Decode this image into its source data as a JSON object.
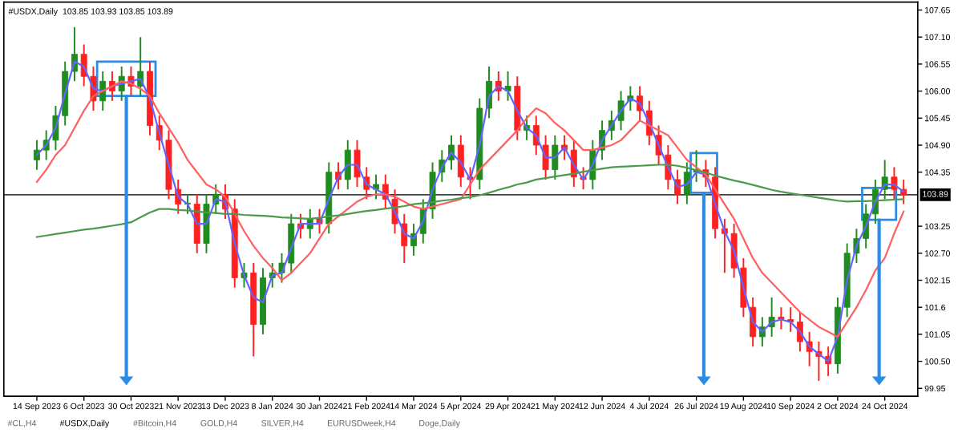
{
  "chart_data": {
    "type": "candlestick",
    "title": "#USDX,Daily  103.85 103.93 103.85 103.89",
    "categories": [
      "14 Sep 2023",
      null,
      null,
      null,
      null,
      "6 Oct 2023",
      null,
      null,
      null,
      null,
      "30 Oct 2023",
      null,
      null,
      null,
      null,
      "21 Nov 2023",
      null,
      null,
      null,
      null,
      "13 Dec 2023",
      null,
      null,
      null,
      null,
      "8 Jan 2024",
      null,
      null,
      null,
      null,
      "30 Jan 2024",
      null,
      null,
      null,
      null,
      "21 Feb 2024",
      null,
      null,
      null,
      null,
      "14 Mar 2024",
      null,
      null,
      null,
      null,
      "5 Apr 2024",
      null,
      null,
      null,
      null,
      "29 Apr 2024",
      null,
      null,
      null,
      null,
      "21 May 2024",
      null,
      null,
      null,
      null,
      "12 Jun 2024",
      null,
      null,
      null,
      null,
      "4 Jul 2024",
      null,
      null,
      null,
      null,
      "26 Jul 2024",
      null,
      null,
      null,
      null,
      "19 Aug 2024",
      null,
      null,
      null,
      null,
      "10 Sep 2024",
      null,
      null,
      null,
      null,
      "2 Oct 2024",
      null,
      null,
      null,
      null,
      "24 Oct 2024",
      null,
      null
    ],
    "ohlc": [
      [
        104.6,
        105.0,
        104.4,
        104.8
      ],
      [
        104.8,
        105.2,
        104.6,
        105.0
      ],
      [
        105.0,
        105.7,
        104.8,
        105.5
      ],
      [
        105.5,
        106.6,
        105.3,
        106.4
      ],
      [
        106.4,
        107.3,
        106.2,
        106.75
      ],
      [
        106.75,
        106.95,
        106.1,
        106.3
      ],
      [
        106.3,
        106.5,
        105.6,
        105.8
      ],
      [
        105.8,
        106.4,
        105.6,
        106.2
      ],
      [
        106.2,
        106.4,
        105.8,
        106.0
      ],
      [
        106.0,
        106.5,
        105.8,
        106.3
      ],
      [
        106.3,
        106.5,
        105.9,
        106.1
      ],
      [
        106.1,
        107.1,
        105.9,
        106.4
      ],
      [
        106.4,
        106.6,
        105.1,
        105.3
      ],
      [
        105.3,
        105.5,
        104.8,
        105.0
      ],
      [
        105.0,
        105.2,
        103.8,
        104.0
      ],
      [
        104.0,
        104.2,
        103.5,
        103.7
      ],
      [
        103.7,
        103.9,
        103.5,
        103.7
      ],
      [
        103.7,
        103.9,
        102.7,
        102.9
      ],
      [
        102.9,
        103.9,
        102.7,
        103.7
      ],
      [
        103.7,
        104.1,
        103.5,
        103.9
      ],
      [
        103.9,
        104.1,
        103.4,
        103.6
      ],
      [
        103.6,
        103.8,
        102.0,
        102.2
      ],
      [
        102.2,
        102.5,
        102.0,
        102.3
      ],
      [
        102.3,
        102.5,
        100.6,
        101.25
      ],
      [
        101.25,
        102.4,
        101.05,
        102.2
      ],
      [
        102.2,
        102.5,
        102.0,
        102.3
      ],
      [
        102.3,
        102.7,
        102.1,
        102.5
      ],
      [
        102.5,
        103.5,
        102.3,
        103.3
      ],
      [
        103.3,
        103.5,
        103.0,
        103.2
      ],
      [
        103.2,
        103.6,
        103.0,
        103.4
      ],
      [
        103.4,
        103.6,
        103.1,
        103.3
      ],
      [
        103.3,
        104.55,
        103.1,
        104.35
      ],
      [
        104.35,
        104.55,
        104.0,
        104.2
      ],
      [
        104.2,
        105.0,
        104.0,
        104.8
      ],
      [
        104.8,
        105.0,
        104.05,
        104.25
      ],
      [
        104.25,
        104.45,
        103.8,
        104.0
      ],
      [
        104.0,
        104.3,
        103.8,
        104.1
      ],
      [
        104.1,
        104.3,
        103.6,
        103.8
      ],
      [
        103.8,
        104.0,
        103.1,
        103.3
      ],
      [
        103.3,
        103.5,
        102.5,
        102.85
      ],
      [
        102.85,
        103.3,
        102.65,
        103.1
      ],
      [
        103.1,
        103.8,
        102.9,
        103.6
      ],
      [
        103.6,
        104.55,
        103.4,
        104.35
      ],
      [
        104.35,
        104.8,
        104.15,
        104.6
      ],
      [
        104.6,
        105.1,
        104.4,
        104.9
      ],
      [
        104.9,
        105.1,
        104.05,
        104.25
      ],
      [
        104.25,
        104.45,
        103.8,
        104.2
      ],
      [
        104.2,
        105.85,
        104.0,
        105.65
      ],
      [
        105.65,
        106.5,
        105.45,
        106.2
      ],
      [
        106.2,
        106.4,
        105.8,
        106.0
      ],
      [
        106.0,
        106.4,
        105.8,
        106.1
      ],
      [
        106.1,
        106.3,
        105.0,
        105.2
      ],
      [
        105.2,
        105.5,
        105.0,
        105.3
      ],
      [
        105.3,
        105.5,
        104.7,
        104.9
      ],
      [
        104.9,
        105.1,
        104.2,
        104.4
      ],
      [
        104.4,
        105.1,
        104.2,
        104.9
      ],
      [
        104.9,
        105.1,
        104.6,
        104.8
      ],
      [
        104.8,
        105.0,
        104.05,
        104.25
      ],
      [
        104.25,
        104.45,
        104.0,
        104.2
      ],
      [
        104.2,
        105.0,
        104.0,
        104.8
      ],
      [
        104.8,
        105.4,
        104.6,
        105.2
      ],
      [
        105.2,
        105.6,
        105.0,
        105.4
      ],
      [
        105.4,
        106.0,
        105.2,
        105.8
      ],
      [
        105.8,
        106.1,
        105.6,
        105.9
      ],
      [
        105.9,
        106.1,
        105.4,
        105.6
      ],
      [
        105.6,
        105.8,
        104.9,
        105.1
      ],
      [
        105.1,
        105.3,
        104.5,
        104.7
      ],
      [
        104.7,
        104.9,
        104.0,
        104.2
      ],
      [
        104.2,
        104.4,
        103.7,
        103.9
      ],
      [
        103.9,
        104.55,
        103.7,
        104.35
      ],
      [
        104.35,
        104.8,
        104.15,
        104.4
      ],
      [
        104.4,
        104.6,
        104.05,
        104.25
      ],
      [
        104.25,
        104.45,
        103.0,
        103.2
      ],
      [
        103.2,
        103.4,
        102.3,
        103.1
      ],
      [
        103.1,
        103.3,
        102.2,
        102.4
      ],
      [
        102.4,
        102.6,
        101.4,
        101.6
      ],
      [
        101.6,
        101.8,
        100.8,
        101.0
      ],
      [
        101.0,
        101.4,
        100.8,
        101.2
      ],
      [
        101.2,
        101.8,
        101.0,
        101.4
      ],
      [
        101.4,
        101.6,
        101.15,
        101.35
      ],
      [
        101.35,
        101.6,
        101.1,
        101.3
      ],
      [
        101.3,
        101.5,
        100.7,
        100.9
      ],
      [
        100.9,
        101.1,
        100.4,
        100.7
      ],
      [
        100.7,
        100.9,
        100.1,
        100.6
      ],
      [
        100.6,
        100.8,
        100.2,
        100.45
      ],
      [
        100.45,
        101.8,
        100.25,
        101.6
      ],
      [
        101.6,
        102.9,
        101.4,
        102.7
      ],
      [
        102.7,
        103.2,
        102.5,
        103.0
      ],
      [
        103.0,
        103.7,
        102.8,
        103.5
      ],
      [
        103.5,
        104.2,
        103.3,
        104.0
      ],
      [
        104.0,
        104.6,
        103.8,
        104.25
      ],
      [
        104.25,
        104.45,
        103.8,
        104.0
      ],
      [
        104.0,
        104.2,
        103.7,
        103.89
      ]
    ],
    "series": [
      {
        "type": "line",
        "color": "#6464ff",
        "values": [
          104.7,
          104.9,
          105.25,
          105.95,
          106.6,
          106.5,
          106.05,
          106.0,
          106.1,
          106.15,
          106.2,
          106.25,
          105.85,
          105.15,
          104.5,
          103.85,
          103.7,
          103.3,
          103.3,
          103.8,
          103.75,
          102.9,
          102.25,
          101.8,
          101.7,
          102.25,
          102.3,
          102.8,
          103.3,
          103.3,
          103.3,
          103.8,
          104.25,
          104.5,
          104.5,
          104.1,
          104.0,
          103.9,
          103.55,
          103.1,
          103.0,
          103.35,
          104.0,
          104.45,
          104.75,
          104.55,
          104.2,
          104.9,
          105.9,
          106.1,
          106.0,
          105.6,
          105.25,
          105.1,
          104.65,
          104.65,
          104.85,
          104.5,
          104.2,
          104.5,
          105.0,
          105.3,
          105.6,
          105.85,
          105.75,
          105.35,
          104.9,
          104.45,
          104.05,
          104.1,
          104.35,
          104.3,
          103.7,
          103.15,
          102.75,
          102.0,
          101.3,
          101.1,
          101.3,
          101.35,
          101.3,
          101.1,
          100.8,
          100.65,
          100.5,
          101.0,
          102.15,
          102.85,
          103.25,
          103.75,
          104.1,
          104.1,
          103.95
        ]
      },
      {
        "type": "line",
        "color": "#ff6060",
        "values": [
          104.15,
          104.4,
          104.7,
          104.9,
          105.25,
          105.6,
          105.9,
          106.0,
          106.1,
          106.2,
          106.15,
          106.05,
          105.9,
          105.55,
          105.25,
          104.95,
          104.6,
          104.35,
          104.1,
          104.0,
          103.85,
          103.5,
          103.15,
          102.85,
          102.6,
          102.4,
          102.15,
          102.3,
          102.5,
          102.7,
          103.0,
          103.3,
          103.45,
          103.6,
          103.75,
          103.85,
          103.9,
          103.9,
          103.85,
          103.75,
          103.65,
          103.6,
          103.65,
          103.7,
          103.75,
          103.8,
          104.1,
          104.4,
          104.6,
          104.8,
          105.0,
          105.2,
          105.45,
          105.65,
          105.55,
          105.35,
          105.2,
          105.0,
          104.8,
          104.8,
          104.85,
          104.9,
          105.0,
          105.2,
          105.4,
          105.3,
          105.2,
          105.1,
          104.85,
          104.6,
          104.45,
          104.3,
          104.0,
          103.7,
          103.4,
          103.0,
          102.6,
          102.3,
          102.1,
          101.9,
          101.7,
          101.5,
          101.35,
          101.2,
          101.1,
          101.0,
          101.3,
          101.6,
          101.95,
          102.35,
          102.6,
          103.1,
          103.55
        ]
      },
      {
        "type": "line",
        "color": "#4c9a4c",
        "values": [
          103.03,
          103.06,
          103.09,
          103.12,
          103.15,
          103.18,
          103.2,
          103.23,
          103.26,
          103.29,
          103.33,
          103.43,
          103.53,
          103.6,
          103.6,
          103.58,
          103.57,
          103.55,
          103.53,
          103.52,
          103.5,
          103.5,
          103.48,
          103.47,
          103.46,
          103.45,
          103.43,
          103.42,
          103.41,
          103.4,
          103.42,
          103.45,
          103.47,
          103.5,
          103.53,
          103.56,
          103.58,
          103.61,
          103.63,
          103.66,
          103.7,
          103.72,
          103.74,
          103.77,
          103.79,
          103.82,
          103.84,
          103.88,
          103.93,
          103.99,
          104.04,
          104.1,
          104.14,
          104.2,
          104.23,
          104.26,
          104.29,
          104.32,
          104.36,
          104.39,
          104.42,
          104.45,
          104.46,
          104.47,
          104.48,
          104.49,
          104.5,
          104.5,
          104.48,
          104.44,
          104.39,
          104.34,
          104.28,
          104.23,
          104.18,
          104.14,
          104.09,
          104.04,
          103.99,
          103.95,
          103.92,
          103.89,
          103.86,
          103.83,
          103.8,
          103.77,
          103.75,
          103.76,
          103.76,
          103.77,
          103.78,
          103.79,
          103.8
        ]
      }
    ],
    "ylim": [
      99.79,
      107.81
    ],
    "yticks": [
      99.95,
      {
        "value": 100.5,
        "label": "100.50"
      },
      101.05,
      101.6,
      102.15,
      {
        "value": 102.7,
        "label": "102.70"
      },
      103.25,
      104.35,
      {
        "value": 104.9,
        "label": "104.90"
      },
      105.45,
      {
        "value": 106.0,
        "label": "106.00"
      },
      106.55,
      {
        "value": 107.1,
        "label": "107.10"
      },
      107.65
    ],
    "ref_lines": [
      {
        "axis": "y",
        "value": 103.89,
        "label": "103.89",
        "color": "#404040"
      }
    ],
    "annotations": [
      "#CL,H4",
      "#USDX,Daily",
      "#Bitcoin,H4",
      "GOLD,H4",
      "SILVER,H4",
      "EURUSDweek,H4",
      "Doge,Daily"
    ],
    "grid": false,
    "legend": false
  }
}
